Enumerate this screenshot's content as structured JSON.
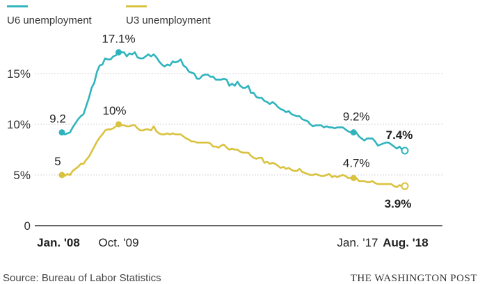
{
  "chart_data": {
    "type": "line",
    "ylim": [
      0,
      17.5
    ],
    "y_ticks": [
      {
        "value": 15,
        "label": "15%"
      },
      {
        "value": 10,
        "label": "10%"
      },
      {
        "value": 5,
        "label": "5%"
      },
      {
        "value": 0,
        "label": "0"
      }
    ],
    "x_ticks": [
      {
        "date": "2008-01",
        "label": "Jan. '08",
        "bold": true
      },
      {
        "date": "2009-10",
        "label": "Oct. '09",
        "bold": false
      },
      {
        "date": "2017-01",
        "label": "Jan. '17",
        "bold": false
      },
      {
        "date": "2018-08",
        "label": "Aug. '18",
        "bold": true
      }
    ],
    "legend_position": "top-left",
    "grid": "horizontal",
    "series": [
      {
        "name": "U6 unemployment",
        "color": "#2fb4bd",
        "points": [
          [
            "2008-01",
            9.2
          ],
          [
            "2008-02",
            9.0
          ],
          [
            "2008-03",
            9.1
          ],
          [
            "2008-04",
            9.2
          ],
          [
            "2008-05",
            9.7
          ],
          [
            "2008-06",
            10.1
          ],
          [
            "2008-07",
            10.5
          ],
          [
            "2008-08",
            10.8
          ],
          [
            "2008-09",
            11.0
          ],
          [
            "2008-10",
            11.8
          ],
          [
            "2008-11",
            12.6
          ],
          [
            "2008-12",
            13.6
          ],
          [
            "2009-01",
            14.1
          ],
          [
            "2009-02",
            15.2
          ],
          [
            "2009-03",
            15.8
          ],
          [
            "2009-04",
            15.9
          ],
          [
            "2009-05",
            16.5
          ],
          [
            "2009-06",
            16.4
          ],
          [
            "2009-07",
            16.4
          ],
          [
            "2009-08",
            16.7
          ],
          [
            "2009-09",
            16.8
          ],
          [
            "2009-10",
            17.1
          ],
          [
            "2009-11",
            17.1
          ],
          [
            "2009-12",
            17.1
          ],
          [
            "2010-01",
            16.7
          ],
          [
            "2010-02",
            17.0
          ],
          [
            "2010-03",
            16.9
          ],
          [
            "2010-04",
            17.1
          ],
          [
            "2010-05",
            16.6
          ],
          [
            "2010-06",
            16.5
          ],
          [
            "2010-07",
            16.5
          ],
          [
            "2010-08",
            16.7
          ],
          [
            "2010-09",
            16.9
          ],
          [
            "2010-10",
            16.7
          ],
          [
            "2010-11",
            16.9
          ],
          [
            "2010-12",
            16.6
          ],
          [
            "2011-01",
            16.2
          ],
          [
            "2011-02",
            15.9
          ],
          [
            "2011-03",
            15.7
          ],
          [
            "2011-04",
            15.9
          ],
          [
            "2011-05",
            15.8
          ],
          [
            "2011-06",
            16.2
          ],
          [
            "2011-07",
            16.1
          ],
          [
            "2011-08",
            16.2
          ],
          [
            "2011-09",
            16.4
          ],
          [
            "2011-10",
            15.8
          ],
          [
            "2011-11",
            15.6
          ],
          [
            "2011-12",
            15.2
          ],
          [
            "2012-01",
            15.1
          ],
          [
            "2012-02",
            15.0
          ],
          [
            "2012-03",
            14.5
          ],
          [
            "2012-04",
            14.5
          ],
          [
            "2012-05",
            14.8
          ],
          [
            "2012-06",
            14.9
          ],
          [
            "2012-07",
            14.9
          ],
          [
            "2012-08",
            14.7
          ],
          [
            "2012-09",
            14.7
          ],
          [
            "2012-10",
            14.4
          ],
          [
            "2012-11",
            14.4
          ],
          [
            "2012-12",
            14.4
          ],
          [
            "2013-01",
            14.5
          ],
          [
            "2013-02",
            14.4
          ],
          [
            "2013-03",
            13.8
          ],
          [
            "2013-04",
            14.0
          ],
          [
            "2013-05",
            13.8
          ],
          [
            "2013-06",
            14.2
          ],
          [
            "2013-07",
            13.8
          ],
          [
            "2013-08",
            13.6
          ],
          [
            "2013-09",
            13.6
          ],
          [
            "2013-10",
            13.8
          ],
          [
            "2013-11",
            13.1
          ],
          [
            "2013-12",
            13.1
          ],
          [
            "2014-01",
            12.7
          ],
          [
            "2014-02",
            12.6
          ],
          [
            "2014-03",
            12.6
          ],
          [
            "2014-04",
            12.3
          ],
          [
            "2014-05",
            12.2
          ],
          [
            "2014-06",
            12.0
          ],
          [
            "2014-07",
            12.2
          ],
          [
            "2014-08",
            12.0
          ],
          [
            "2014-09",
            11.7
          ],
          [
            "2014-10",
            11.5
          ],
          [
            "2014-11",
            11.4
          ],
          [
            "2014-12",
            11.2
          ],
          [
            "2015-01",
            11.3
          ],
          [
            "2015-02",
            11.0
          ],
          [
            "2015-03",
            10.9
          ],
          [
            "2015-04",
            10.8
          ],
          [
            "2015-05",
            10.8
          ],
          [
            "2015-06",
            10.5
          ],
          [
            "2015-07",
            10.4
          ],
          [
            "2015-08",
            10.3
          ],
          [
            "2015-09",
            10.0
          ],
          [
            "2015-10",
            9.8
          ],
          [
            "2015-11",
            9.9
          ],
          [
            "2015-12",
            9.9
          ],
          [
            "2016-01",
            9.9
          ],
          [
            "2016-02",
            9.7
          ],
          [
            "2016-03",
            9.8
          ],
          [
            "2016-04",
            9.7
          ],
          [
            "2016-05",
            9.7
          ],
          [
            "2016-06",
            9.6
          ],
          [
            "2016-07",
            9.7
          ],
          [
            "2016-08",
            9.7
          ],
          [
            "2016-09",
            9.7
          ],
          [
            "2016-10",
            9.5
          ],
          [
            "2016-11",
            9.3
          ],
          [
            "2016-12",
            9.2
          ],
          [
            "2017-01",
            9.2
          ],
          [
            "2017-02",
            9.2
          ],
          [
            "2017-03",
            8.8
          ],
          [
            "2017-04",
            8.6
          ],
          [
            "2017-05",
            8.4
          ],
          [
            "2017-06",
            8.6
          ],
          [
            "2017-07",
            8.6
          ],
          [
            "2017-08",
            8.6
          ],
          [
            "2017-09",
            8.3
          ],
          [
            "2017-10",
            7.9
          ],
          [
            "2017-11",
            8.0
          ],
          [
            "2017-12",
            8.1
          ],
          [
            "2018-01",
            8.2
          ],
          [
            "2018-02",
            8.2
          ],
          [
            "2018-03",
            8.0
          ],
          [
            "2018-04",
            7.8
          ],
          [
            "2018-05",
            7.6
          ],
          [
            "2018-06",
            7.8
          ],
          [
            "2018-07",
            7.5
          ],
          [
            "2018-08",
            7.4
          ]
        ]
      },
      {
        "name": "U3 unemployment",
        "color": "#d9c23e",
        "points": [
          [
            "2008-01",
            5.0
          ],
          [
            "2008-02",
            4.9
          ],
          [
            "2008-03",
            5.1
          ],
          [
            "2008-04",
            5.0
          ],
          [
            "2008-05",
            5.4
          ],
          [
            "2008-06",
            5.6
          ],
          [
            "2008-07",
            5.8
          ],
          [
            "2008-08",
            6.1
          ],
          [
            "2008-09",
            6.1
          ],
          [
            "2008-10",
            6.5
          ],
          [
            "2008-11",
            6.8
          ],
          [
            "2008-12",
            7.3
          ],
          [
            "2009-01",
            7.8
          ],
          [
            "2009-02",
            8.3
          ],
          [
            "2009-03",
            8.7
          ],
          [
            "2009-04",
            9.0
          ],
          [
            "2009-05",
            9.4
          ],
          [
            "2009-06",
            9.5
          ],
          [
            "2009-07",
            9.5
          ],
          [
            "2009-08",
            9.6
          ],
          [
            "2009-09",
            9.8
          ],
          [
            "2009-10",
            10.0
          ],
          [
            "2009-11",
            9.9
          ],
          [
            "2009-12",
            9.9
          ],
          [
            "2010-01",
            9.8
          ],
          [
            "2010-02",
            9.8
          ],
          [
            "2010-03",
            9.9
          ],
          [
            "2010-04",
            9.9
          ],
          [
            "2010-05",
            9.6
          ],
          [
            "2010-06",
            9.4
          ],
          [
            "2010-07",
            9.4
          ],
          [
            "2010-08",
            9.5
          ],
          [
            "2010-09",
            9.5
          ],
          [
            "2010-10",
            9.4
          ],
          [
            "2010-11",
            9.8
          ],
          [
            "2010-12",
            9.3
          ],
          [
            "2011-01",
            9.1
          ],
          [
            "2011-02",
            9.0
          ],
          [
            "2011-03",
            9.0
          ],
          [
            "2011-04",
            9.1
          ],
          [
            "2011-05",
            9.0
          ],
          [
            "2011-06",
            9.1
          ],
          [
            "2011-07",
            9.0
          ],
          [
            "2011-08",
            9.0
          ],
          [
            "2011-09",
            9.0
          ],
          [
            "2011-10",
            8.8
          ],
          [
            "2011-11",
            8.6
          ],
          [
            "2011-12",
            8.5
          ],
          [
            "2012-01",
            8.3
          ],
          [
            "2012-02",
            8.3
          ],
          [
            "2012-03",
            8.2
          ],
          [
            "2012-04",
            8.2
          ],
          [
            "2012-05",
            8.2
          ],
          [
            "2012-06",
            8.2
          ],
          [
            "2012-07",
            8.2
          ],
          [
            "2012-08",
            8.1
          ],
          [
            "2012-09",
            7.8
          ],
          [
            "2012-10",
            7.8
          ],
          [
            "2012-11",
            7.7
          ],
          [
            "2012-12",
            7.9
          ],
          [
            "2013-01",
            8.0
          ],
          [
            "2013-02",
            7.7
          ],
          [
            "2013-03",
            7.5
          ],
          [
            "2013-04",
            7.6
          ],
          [
            "2013-05",
            7.5
          ],
          [
            "2013-06",
            7.5
          ],
          [
            "2013-07",
            7.3
          ],
          [
            "2013-08",
            7.2
          ],
          [
            "2013-09",
            7.2
          ],
          [
            "2013-10",
            7.2
          ],
          [
            "2013-11",
            6.9
          ],
          [
            "2013-12",
            6.7
          ],
          [
            "2014-01",
            6.6
          ],
          [
            "2014-02",
            6.7
          ],
          [
            "2014-03",
            6.7
          ],
          [
            "2014-04",
            6.2
          ],
          [
            "2014-05",
            6.3
          ],
          [
            "2014-06",
            6.1
          ],
          [
            "2014-07",
            6.2
          ],
          [
            "2014-08",
            6.1
          ],
          [
            "2014-09",
            5.9
          ],
          [
            "2014-10",
            5.7
          ],
          [
            "2014-11",
            5.8
          ],
          [
            "2014-12",
            5.6
          ],
          [
            "2015-01",
            5.7
          ],
          [
            "2015-02",
            5.5
          ],
          [
            "2015-03",
            5.4
          ],
          [
            "2015-04",
            5.4
          ],
          [
            "2015-05",
            5.6
          ],
          [
            "2015-06",
            5.3
          ],
          [
            "2015-07",
            5.2
          ],
          [
            "2015-08",
            5.1
          ],
          [
            "2015-09",
            5.0
          ],
          [
            "2015-10",
            5.0
          ],
          [
            "2015-11",
            5.1
          ],
          [
            "2015-12",
            5.0
          ],
          [
            "2016-01",
            4.9
          ],
          [
            "2016-02",
            4.9
          ],
          [
            "2016-03",
            5.0
          ],
          [
            "2016-04",
            5.1
          ],
          [
            "2016-05",
            4.8
          ],
          [
            "2016-06",
            4.9
          ],
          [
            "2016-07",
            4.8
          ],
          [
            "2016-08",
            4.9
          ],
          [
            "2016-09",
            5.0
          ],
          [
            "2016-10",
            4.9
          ],
          [
            "2016-11",
            4.7
          ],
          [
            "2016-12",
            4.7
          ],
          [
            "2017-01",
            4.7
          ],
          [
            "2017-02",
            4.7
          ],
          [
            "2017-03",
            4.4
          ],
          [
            "2017-04",
            4.4
          ],
          [
            "2017-05",
            4.4
          ],
          [
            "2017-06",
            4.3
          ],
          [
            "2017-07",
            4.3
          ],
          [
            "2017-08",
            4.4
          ],
          [
            "2017-09",
            4.2
          ],
          [
            "2017-10",
            4.1
          ],
          [
            "2017-11",
            4.1
          ],
          [
            "2017-12",
            4.1
          ],
          [
            "2018-01",
            4.1
          ],
          [
            "2018-02",
            4.1
          ],
          [
            "2018-03",
            4.1
          ],
          [
            "2018-04",
            3.9
          ],
          [
            "2018-05",
            3.8
          ],
          [
            "2018-06",
            4.0
          ],
          [
            "2018-07",
            3.9
          ],
          [
            "2018-08",
            3.9
          ]
        ]
      }
    ],
    "annotations": [
      {
        "series": 0,
        "date": "2008-01",
        "value": 9.2,
        "label": "9.2",
        "bold": false,
        "hollow": false
      },
      {
        "series": 0,
        "date": "2009-10",
        "value": 17.1,
        "label": "17.1%",
        "bold": false,
        "hollow": false
      },
      {
        "series": 0,
        "date": "2017-01",
        "value": 9.2,
        "label": "9.2%",
        "bold": false,
        "hollow": false
      },
      {
        "series": 0,
        "date": "2018-08",
        "value": 7.4,
        "label": "7.4%",
        "bold": true,
        "hollow": true
      },
      {
        "series": 1,
        "date": "2008-01",
        "value": 5.0,
        "label": "5",
        "bold": false,
        "hollow": false
      },
      {
        "series": 1,
        "date": "2009-10",
        "value": 10.0,
        "label": "10%",
        "bold": false,
        "hollow": false
      },
      {
        "series": 1,
        "date": "2017-01",
        "value": 4.7,
        "label": "4.7%",
        "bold": false,
        "hollow": false
      },
      {
        "series": 1,
        "date": "2018-08",
        "value": 3.9,
        "label": "3.9%",
        "bold": true,
        "hollow": true
      }
    ],
    "source": "Source: Bureau of Labor Statistics",
    "credit": "THE WASHINGTON POST"
  }
}
